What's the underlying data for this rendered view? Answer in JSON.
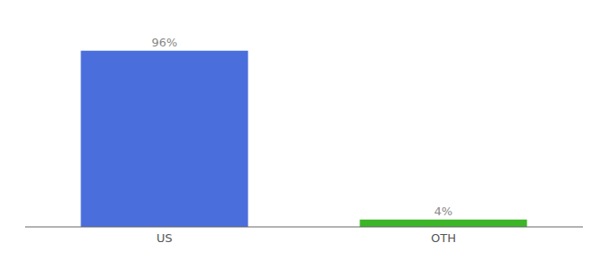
{
  "chart_data": {
    "type": "bar",
    "categories": [
      "US",
      "OTH"
    ],
    "values": [
      96,
      4
    ],
    "value_labels": [
      "96%",
      "4%"
    ],
    "colors": [
      "#4a6fdc",
      "#3db528"
    ],
    "ylim": [
      0,
      108
    ],
    "data_labels": true,
    "tick_labels": "x",
    "grid": false
  }
}
